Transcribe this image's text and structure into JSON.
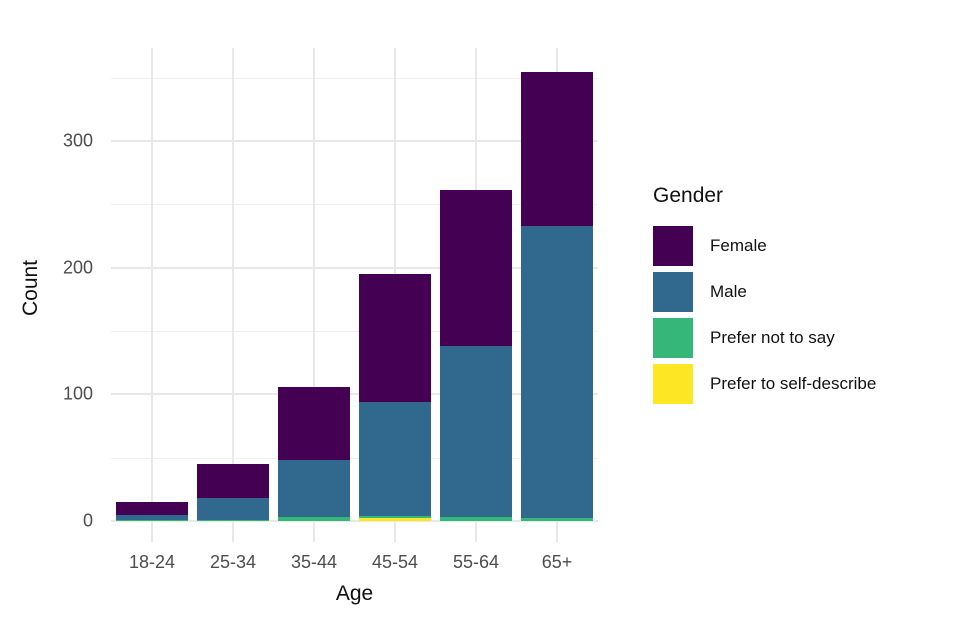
{
  "chart_data": {
    "type": "bar",
    "stacked": true,
    "title": "",
    "xlabel": "Age",
    "ylabel": "Count",
    "categories": [
      "18-24",
      "25-34",
      "35-44",
      "45-54",
      "55-64",
      "65+"
    ],
    "series": [
      {
        "name": "Female",
        "color": "#440154",
        "values": [
          10,
          27,
          58,
          101,
          123,
          121
        ]
      },
      {
        "name": "Male",
        "color": "#31688E",
        "values": [
          4,
          17,
          45,
          90,
          135,
          231
        ]
      },
      {
        "name": "Prefer not to say",
        "color": "#35B779",
        "values": [
          1,
          1,
          3,
          2,
          3,
          2
        ]
      },
      {
        "name": "Prefer to self-describe",
        "color": "#FDE725",
        "values": [
          0,
          0,
          0,
          2,
          0,
          0
        ]
      }
    ],
    "stack_order_bottom_to_top": [
      "Prefer to self-describe",
      "Prefer not to say",
      "Male",
      "Female"
    ],
    "totals": [
      15,
      45,
      106,
      195,
      261,
      354
    ],
    "y_ticks": [
      0,
      100,
      200,
      300
    ],
    "y_minor_ticks": [
      50,
      150,
      250,
      350
    ],
    "ylim": [
      0,
      372
    ],
    "legend_title": "Gender",
    "legend_position": "right",
    "grid": true,
    "colors": {
      "background": "#FFFFFF",
      "grid_major": "#E8E8E8",
      "grid_minor": "#EFEFEF",
      "axis_text": "#4D4D4D",
      "axis_title": "#111111"
    }
  }
}
